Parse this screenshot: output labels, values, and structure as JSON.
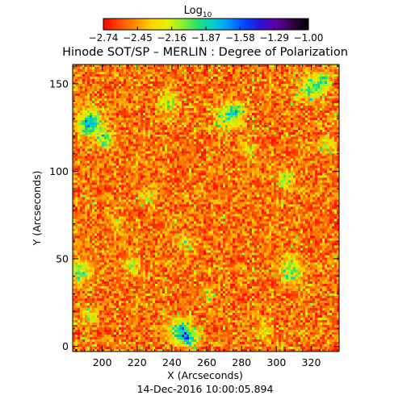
{
  "chart_data": {
    "type": "heatmap",
    "title": "Hinode SOT/SP – MERLIN : Degree of Polarization",
    "xlabel": "X (Arcseconds)",
    "ylabel": "Y (Arcseconds)",
    "footer": "14-Dec-2016 10:00:05.894",
    "xlim": [
      183,
      336
    ],
    "ylim": [
      -3,
      161
    ],
    "x_ticks": [
      200,
      220,
      240,
      260,
      280,
      300,
      320
    ],
    "y_ticks": [
      0,
      50,
      100,
      150
    ],
    "x_tick_labels": [
      "200",
      "220",
      "240",
      "260",
      "280",
      "300",
      "320"
    ],
    "y_tick_labels": [
      "0",
      "50",
      "100",
      "150"
    ],
    "colorbar": {
      "label_base": "Log",
      "label_sub": "10",
      "range": [
        -2.74,
        -1.0
      ],
      "ticks": [
        -2.74,
        -2.45,
        -2.16,
        -1.87,
        -1.58,
        -1.29,
        -1.0
      ],
      "tick_labels": [
        "−2.74",
        "−2.45",
        "−2.16",
        "−1.87",
        "−1.58",
        "−1.29",
        "−1.00"
      ],
      "palette": [
        "#ff0000",
        "#ff4a00",
        "#ff8c00",
        "#ffd000",
        "#e8f000",
        "#8cf030",
        "#20e070",
        "#00d0d0",
        "#0090ff",
        "#0040ff",
        "#3010d0",
        "#6000a0",
        "#300040",
        "#000000"
      ]
    },
    "background_value": -2.55,
    "field_stats": {
      "typical_min": -2.74,
      "typical_max": -2.1,
      "peak": -1.45
    },
    "grid": false
  }
}
